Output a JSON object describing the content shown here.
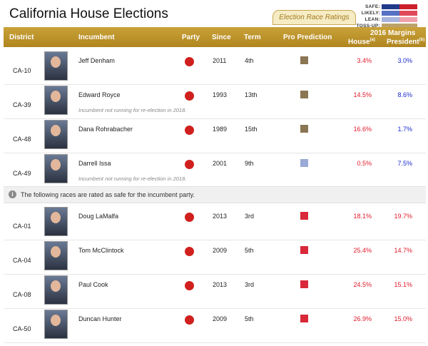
{
  "title": "California House Elections",
  "ratings_tab": "Election Race Ratings",
  "legend": [
    {
      "label": "SAFE:",
      "colors": [
        "#203a8a",
        "#cc1f2c"
      ]
    },
    {
      "label": "LIKELY:",
      "colors": [
        "#5671c4",
        "#e0495a"
      ]
    },
    {
      "label": "LEAN:",
      "colors": [
        "#a6b4de",
        "#efa0aa"
      ]
    },
    {
      "label": "TOSS-UP:",
      "colors": [
        "#bca36b",
        "#bca36b"
      ]
    }
  ],
  "header": {
    "district": "District",
    "incumbent": "Incumbent",
    "party": "Party",
    "since": "Since",
    "term": "Term",
    "prediction": "Pro Prediction",
    "margins": "2016 Margins",
    "house": "House",
    "house_sup": "(a)",
    "president": "President",
    "president_sup": "(b)"
  },
  "notice": "The following races are rated as safe for the incumbent party.",
  "rows": [
    {
      "district": "CA-10",
      "name": "Jeff Denham",
      "since": "2011",
      "term": "4th",
      "pred_color": "#8b7653",
      "house": "3.4%",
      "pres": "3.0%",
      "pres_color": "#1a2ad0",
      "note": ""
    },
    {
      "district": "CA-39",
      "name": "Edward Royce",
      "since": "1993",
      "term": "13th",
      "pred_color": "#8b7653",
      "house": "14.5%",
      "pres": "8.6%",
      "pres_color": "#1a2ad0",
      "note": "Incumbent not running for re-election in 2018."
    },
    {
      "district": "CA-48",
      "name": "Dana Rohrabacher",
      "since": "1989",
      "term": "15th",
      "pred_color": "#8b7653",
      "house": "16.6%",
      "pres": "1.7%",
      "pres_color": "#1a2ad0",
      "note": ""
    },
    {
      "district": "CA-49",
      "name": "Darrell Issa",
      "since": "2001",
      "term": "9th",
      "pred_color": "#9aa9d6",
      "house": "0.5%",
      "pres": "7.5%",
      "pres_color": "#1a2ad0",
      "note": "Incumbent not running for re-election in 2018."
    },
    {
      "district": "CA-01",
      "name": "Doug LaMalfa",
      "since": "2013",
      "term": "3rd",
      "pred_color": "#d9283a",
      "house": "18.1%",
      "pres": "19.7%",
      "pres_color": "#e01a2a",
      "note": ""
    },
    {
      "district": "CA-04",
      "name": "Tom McClintock",
      "since": "2009",
      "term": "5th",
      "pred_color": "#d9283a",
      "house": "25.4%",
      "pres": "14.7%",
      "pres_color": "#e01a2a",
      "note": ""
    },
    {
      "district": "CA-08",
      "name": "Paul Cook",
      "since": "2013",
      "term": "3rd",
      "pred_color": "#d9283a",
      "house": "24.5%",
      "pres": "15.1%",
      "pres_color": "#e01a2a",
      "note": ""
    },
    {
      "district": "CA-50",
      "name": "Duncan Hunter",
      "since": "2009",
      "term": "5th",
      "pred_color": "#d9283a",
      "house": "26.9%",
      "pres": "15.0%",
      "pres_color": "#e01a2a",
      "note": ""
    }
  ]
}
